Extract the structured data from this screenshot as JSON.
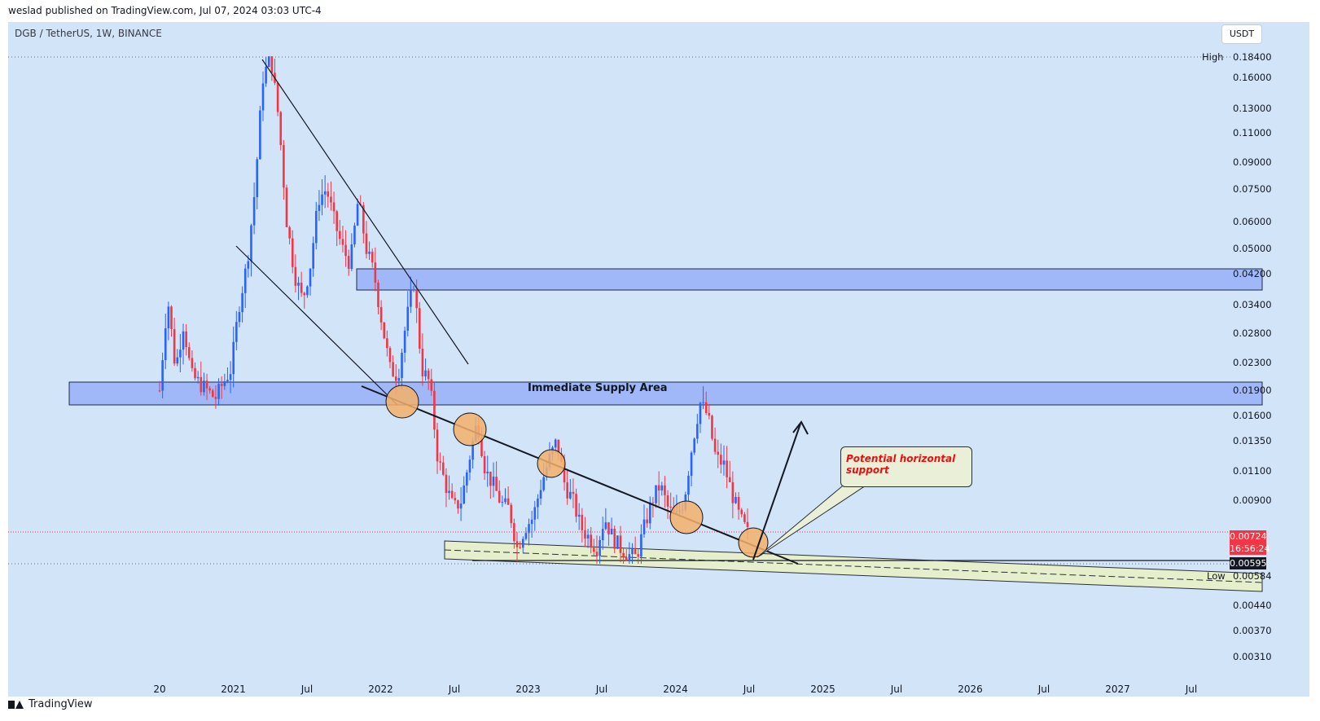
{
  "header": {
    "published": "weslad published on TradingView.com, Jul 07, 2024 03:03 UTC-4",
    "symbol": "DGB / TetherUS, 1W, BINANCE",
    "currency": "USDT"
  },
  "price_axis": {
    "ticks": [
      "0.16000",
      "0.13000",
      "0.11000",
      "0.09000",
      "0.07500",
      "0.06000",
      "0.05000",
      "0.04200",
      "0.03400",
      "0.02800",
      "0.02300",
      "0.01900",
      "0.01600",
      "0.01350",
      "0.01100",
      "0.00900",
      "0.00440",
      "0.00370",
      "0.00310"
    ],
    "high_label": "High",
    "high_value": "0.18400",
    "low_label": "Low",
    "low_value": "0.00584",
    "current_price": "0.00724",
    "countdown": "16:56:24",
    "support_price": "0.00595"
  },
  "time_axis": {
    "labels": [
      "20",
      "2021",
      "Jul",
      "2022",
      "Jul",
      "2023",
      "Jul",
      "2024",
      "Jul",
      "2025",
      "Jul",
      "2026",
      "Jul",
      "2027",
      "Jul"
    ]
  },
  "annotations": {
    "supply_area": "Immediate Supply Area",
    "callout": "Potential horizontal support"
  },
  "colors": {
    "background": "#d1e4f8",
    "up_candle": "#2962ff",
    "down_candle": "#f23645",
    "supply_zone": "#a0b8f8",
    "support_zone": "#e6efcc",
    "circle": "#f4b06a"
  },
  "branding": {
    "logo": "TradingView"
  },
  "chart_data": {
    "type": "candlestick",
    "x_range": [
      "2020-09",
      "2027-12"
    ],
    "y_scale": "log",
    "y_range": [
      0.0029,
      0.195
    ],
    "timeframe": "1W",
    "high": 0.184,
    "low": 0.00584,
    "last": 0.00724,
    "key_levels": {
      "supply_zone": [
        0.0178,
        0.0204
      ],
      "upper_supply_zone": [
        0.038,
        0.044
      ],
      "horizontal_support": 0.00595
    },
    "trend_touches": [
      "2022-05",
      "2022-08",
      "2023-03",
      "2024-01",
      "2024-07"
    ],
    "path": [
      [
        0.019,
        0.036,
        0.022,
        0.03,
        0.021,
        0.02,
        0.019,
        0.018,
        0.02
      ],
      [
        0.022,
        0.034,
        0.045,
        0.075,
        0.16,
        0.184,
        0.12,
        0.06,
        0.042,
        0.035
      ],
      [
        0.045,
        0.07,
        0.075,
        0.06,
        0.05,
        0.045,
        0.07,
        0.05,
        0.042,
        0.03
      ],
      [
        0.022,
        0.021,
        0.03,
        0.04,
        0.022,
        0.02,
        0.012,
        0.01,
        0.0085,
        0.009
      ],
      [
        0.012,
        0.0155,
        0.011,
        0.01,
        0.0088,
        0.0085,
        0.0065,
        0.0075,
        0.008
      ],
      [
        0.01,
        0.0118,
        0.0135,
        0.01,
        0.009,
        0.0075,
        0.007,
        0.0065,
        0.008
      ],
      [
        0.007,
        0.0065,
        0.0062,
        0.0061,
        0.0075,
        0.009,
        0.01,
        0.0085,
        0.008
      ],
      [
        0.009,
        0.013,
        0.0175,
        0.016,
        0.012,
        0.0115,
        0.0095,
        0.008,
        0.0072
      ]
    ]
  }
}
